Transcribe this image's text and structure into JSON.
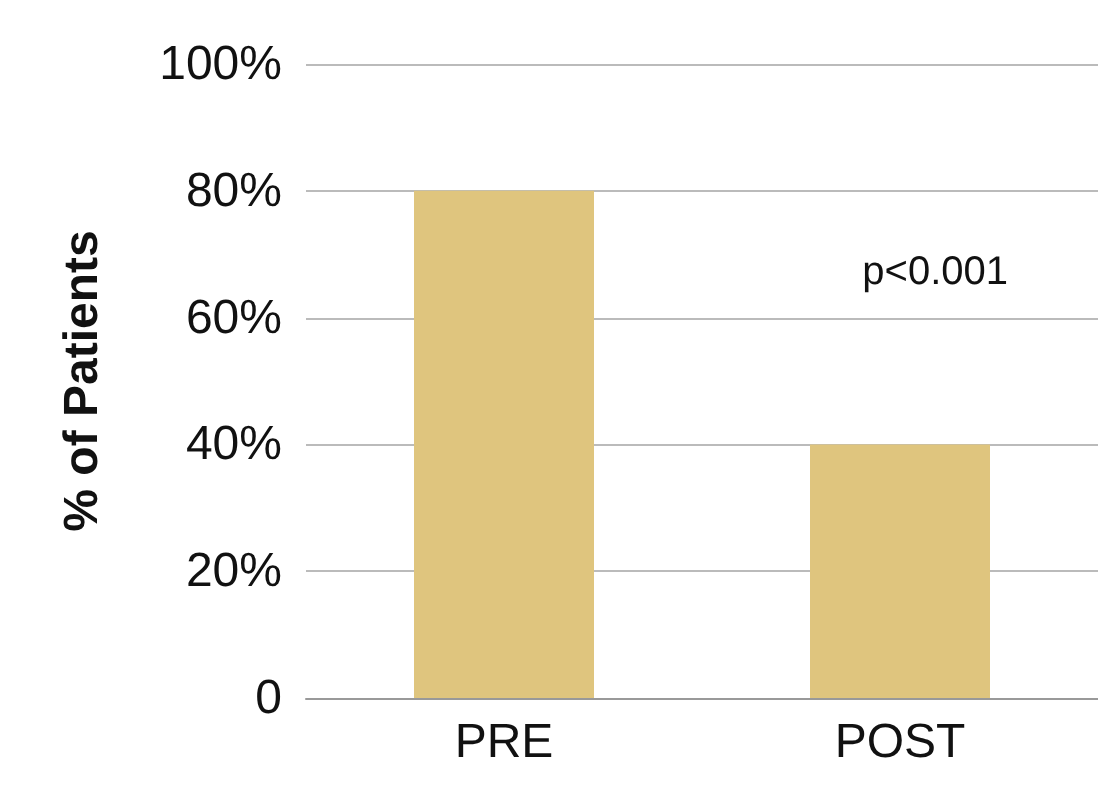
{
  "chart_data": {
    "type": "bar",
    "ylabel": "% of Patients",
    "categories": [
      "PRE",
      "POST"
    ],
    "values": [
      80,
      40
    ],
    "color": "#dfc57e",
    "ylim": [
      0,
      100
    ],
    "yticks": [
      {
        "value": 0,
        "label": "0"
      },
      {
        "value": 20,
        "label": "20%"
      },
      {
        "value": 40,
        "label": "40%"
      },
      {
        "value": 60,
        "label": "60%"
      },
      {
        "value": 80,
        "label": "80%"
      },
      {
        "value": 100,
        "label": "100%"
      }
    ],
    "grid": "y",
    "annotations": [
      "p<0.001"
    ]
  }
}
